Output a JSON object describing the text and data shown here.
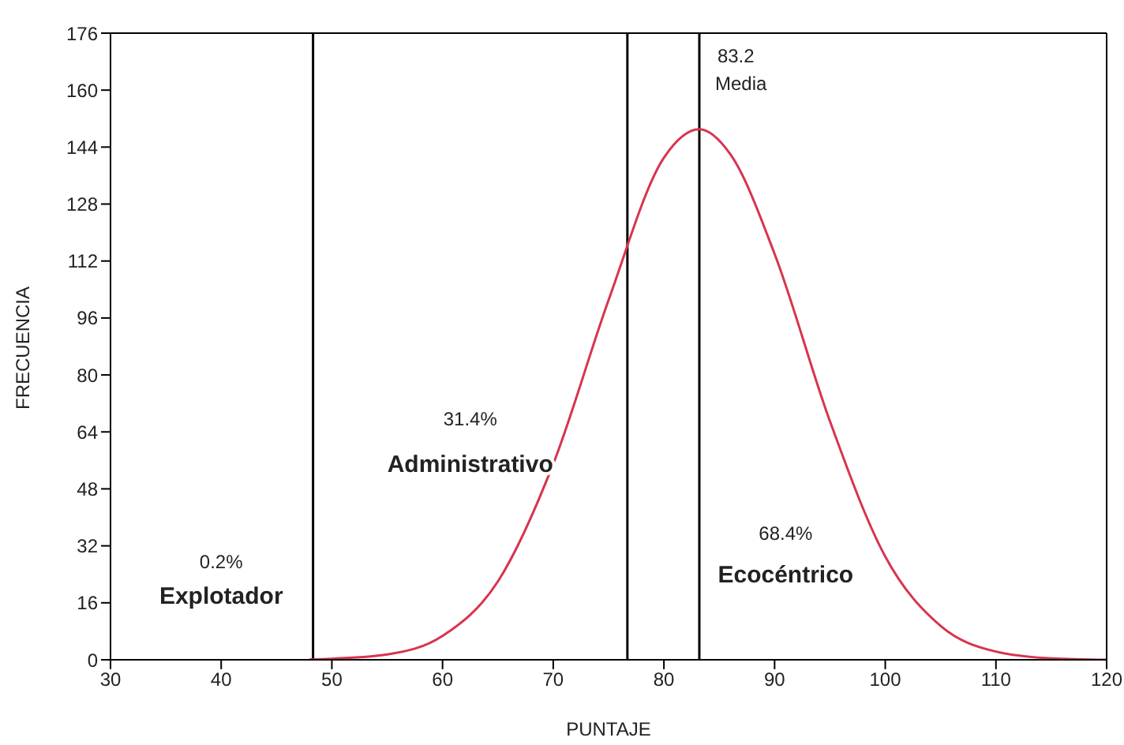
{
  "chart_data": {
    "type": "line",
    "xlabel": "PUNTAJE",
    "ylabel": "FRECUENCIA",
    "x": [
      48,
      50,
      55,
      60,
      65,
      70,
      75,
      80,
      83.2,
      86,
      90,
      95,
      100,
      105,
      110,
      115,
      120
    ],
    "series": [
      {
        "color": "#d8344f",
        "values": [
          0.1,
          0.3,
          1.5,
          6.7,
          22,
          55,
          101,
          141,
          149,
          142,
          114,
          67,
          29,
          9.5,
          2.3,
          0.4,
          0
        ]
      }
    ],
    "xlim": [
      30,
      120
    ],
    "xticks": [
      30,
      40,
      50,
      60,
      70,
      80,
      90,
      100,
      110,
      120
    ],
    "ylim": [
      0,
      176
    ],
    "yticks": [
      0,
      16,
      32,
      48,
      64,
      80,
      96,
      112,
      128,
      144,
      160,
      176
    ],
    "grid": false,
    "legend": false,
    "marker": "none",
    "line_style": "solid",
    "ref_lines": [
      {
        "axis": "x",
        "value": 48.3,
        "color": "#000000"
      },
      {
        "axis": "x",
        "value": 76.7,
        "color": "#000000"
      },
      {
        "axis": "x",
        "value": 83.2,
        "label": "Media",
        "color": "#000000"
      }
    ],
    "annotations": [
      "0.2%",
      "Explotador",
      "31.4%",
      "Administrativo",
      "68.4%",
      "Ecocéntrico",
      "83.2"
    ]
  }
}
